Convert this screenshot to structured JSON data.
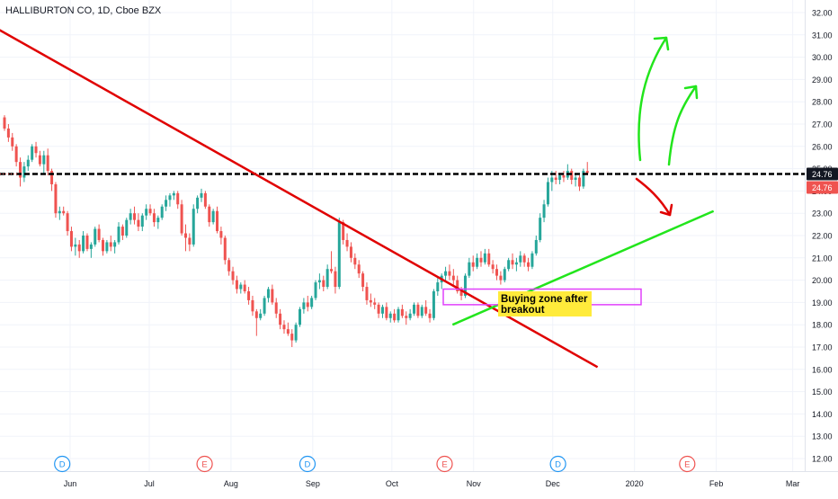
{
  "header": {
    "symbol": "HALLIBURTON CO",
    "interval": "1D",
    "exchange": "Cboe BZX"
  },
  "colors": {
    "up": "#26a69a",
    "down": "#ef5350",
    "trend_down": "#e00000",
    "trend_up": "#22e51c",
    "arrow_up": "#22e51c",
    "arrow_down": "#e00000",
    "level": "#000000",
    "zone_border": "#e040fb",
    "label_bg": "#ffeb3b",
    "price_tag": "#131722",
    "price_tag_red": "#ef5350",
    "dividend": "#2196f3",
    "earnings": "#ef5350"
  },
  "annotations": {
    "buying_zone_label": "Buying zone after breakout"
  },
  "chart_data": {
    "type": "candlestick",
    "title": "HALLIBURTON CO, 1D, Cboe BZX",
    "ylim": [
      11.4,
      32.6
    ],
    "y_ticks": [
      "32.00",
      "31.00",
      "30.00",
      "29.00",
      "28.00",
      "27.00",
      "26.00",
      "25.00",
      "24.00",
      "23.00",
      "22.00",
      "21.00",
      "20.00",
      "19.00",
      "18.00",
      "17.00",
      "16.00",
      "15.00",
      "14.00",
      "13.00",
      "12.00"
    ],
    "x_ticks": [
      "Jun",
      "Jul",
      "Aug",
      "Sep",
      "Oct",
      "Nov",
      "Dec",
      "2020",
      "Feb",
      "Mar"
    ],
    "last_price": "24.76",
    "last_price_2": "24.76",
    "event_markers": [
      {
        "letter": "D",
        "type": "dividend",
        "date": "May 29"
      },
      {
        "letter": "E",
        "type": "earnings",
        "date": "Jul 22"
      },
      {
        "letter": "D",
        "type": "dividend",
        "date": "Aug 30"
      },
      {
        "letter": "E",
        "type": "earnings",
        "date": "Oct 21"
      },
      {
        "letter": "D",
        "type": "dividend",
        "date": "Dec 3"
      },
      {
        "letter": "E",
        "type": "earnings",
        "date": "Jan 21"
      }
    ],
    "drawings": {
      "descending_trendline": {
        "from": {
          "date": "May 1",
          "price": 31.5
        },
        "to": {
          "date": "Dec 18",
          "price": 16.1
        }
      },
      "ascending_trendline": {
        "from": {
          "date": "Oct 24",
          "price": 18.0
        },
        "to": {
          "date": "Jan 31",
          "price": 23.1
        }
      },
      "horizontal_level": 24.76,
      "buying_zone": {
        "low": 18.9,
        "high": 19.6
      }
    },
    "candles": [
      [
        27.3,
        27.4,
        26.7,
        26.8
      ],
      [
        26.8,
        27.0,
        26.2,
        26.4
      ],
      [
        26.4,
        26.6,
        25.8,
        26.0
      ],
      [
        26.0,
        26.1,
        25.1,
        25.3
      ],
      [
        25.3,
        25.5,
        24.2,
        24.6
      ],
      [
        24.6,
        25.3,
        24.4,
        25.1
      ],
      [
        25.1,
        25.6,
        24.9,
        25.4
      ],
      [
        25.4,
        26.1,
        25.3,
        26.0
      ],
      [
        26.0,
        26.2,
        25.5,
        25.7
      ],
      [
        25.6,
        25.8,
        25.1,
        25.2
      ],
      [
        25.2,
        25.8,
        24.8,
        25.6
      ],
      [
        25.6,
        25.9,
        24.7,
        24.9
      ],
      [
        24.9,
        25.0,
        24.0,
        24.3
      ],
      [
        24.3,
        24.4,
        22.8,
        23.0
      ],
      [
        23.0,
        23.3,
        22.7,
        23.1
      ],
      [
        23.1,
        23.3,
        22.9,
        23.0
      ],
      [
        23.0,
        23.1,
        22.0,
        22.2
      ],
      [
        22.2,
        22.4,
        21.3,
        21.5
      ],
      [
        21.5,
        21.9,
        21.1,
        21.6
      ],
      [
        21.6,
        21.8,
        21.0,
        21.3
      ],
      [
        21.3,
        22.2,
        21.2,
        22.0
      ],
      [
        22.0,
        22.1,
        21.3,
        21.4
      ],
      [
        21.4,
        21.7,
        21.0,
        21.6
      ],
      [
        21.6,
        22.4,
        21.5,
        22.3
      ],
      [
        22.3,
        22.5,
        21.7,
        21.8
      ],
      [
        21.8,
        21.9,
        21.1,
        21.3
      ],
      [
        21.3,
        21.8,
        21.2,
        21.7
      ],
      [
        21.7,
        22.0,
        21.3,
        21.5
      ],
      [
        21.5,
        21.8,
        21.2,
        21.7
      ],
      [
        21.7,
        22.6,
        21.6,
        22.4
      ],
      [
        22.4,
        22.5,
        21.8,
        22.0
      ],
      [
        22.0,
        22.8,
        21.9,
        22.7
      ],
      [
        22.7,
        23.2,
        22.5,
        23.0
      ],
      [
        23.0,
        23.3,
        22.5,
        22.7
      ],
      [
        22.7,
        23.0,
        22.2,
        22.4
      ],
      [
        22.4,
        23.0,
        22.2,
        22.9
      ],
      [
        22.9,
        23.4,
        22.7,
        23.2
      ],
      [
        23.2,
        23.4,
        22.9,
        23.0
      ],
      [
        23.0,
        23.2,
        22.4,
        22.6
      ],
      [
        22.6,
        22.9,
        22.3,
        22.8
      ],
      [
        22.8,
        23.4,
        22.7,
        23.3
      ],
      [
        23.3,
        23.8,
        23.1,
        23.6
      ],
      [
        23.6,
        23.9,
        23.3,
        23.8
      ],
      [
        23.8,
        24.0,
        23.6,
        23.9
      ],
      [
        23.9,
        24.0,
        23.2,
        23.4
      ],
      [
        23.4,
        23.6,
        22.0,
        22.1
      ],
      [
        22.1,
        22.5,
        21.3,
        21.9
      ],
      [
        21.9,
        22.1,
        21.3,
        21.6
      ],
      [
        21.6,
        23.4,
        21.5,
        23.2
      ],
      [
        23.2,
        23.8,
        23.0,
        23.7
      ],
      [
        23.7,
        24.1,
        23.5,
        23.9
      ],
      [
        23.9,
        24.0,
        23.2,
        23.3
      ],
      [
        23.3,
        23.4,
        22.4,
        22.6
      ],
      [
        22.6,
        23.2,
        22.5,
        23.1
      ],
      [
        23.1,
        23.3,
        22.1,
        22.2
      ],
      [
        22.2,
        22.4,
        21.6,
        21.9
      ],
      [
        21.9,
        22.0,
        20.7,
        20.9
      ],
      [
        20.9,
        21.0,
        20.2,
        20.4
      ],
      [
        20.4,
        20.6,
        19.8,
        20.0
      ],
      [
        20.0,
        20.2,
        19.4,
        19.6
      ],
      [
        19.6,
        19.9,
        19.4,
        19.8
      ],
      [
        19.8,
        20.0,
        19.4,
        19.5
      ],
      [
        19.5,
        19.7,
        18.9,
        19.1
      ],
      [
        19.1,
        19.3,
        18.4,
        18.6
      ],
      [
        18.6,
        18.7,
        17.5,
        18.3
      ],
      [
        18.3,
        18.7,
        18.2,
        18.5
      ],
      [
        18.5,
        19.3,
        18.4,
        19.2
      ],
      [
        19.2,
        19.7,
        19.0,
        19.6
      ],
      [
        19.6,
        19.8,
        18.9,
        19.0
      ],
      [
        19.0,
        19.2,
        18.3,
        18.5
      ],
      [
        18.5,
        18.7,
        17.8,
        18.0
      ],
      [
        18.0,
        18.2,
        17.6,
        17.8
      ],
      [
        17.8,
        18.1,
        17.5,
        17.6
      ],
      [
        17.6,
        17.8,
        17.0,
        17.3
      ],
      [
        17.3,
        18.1,
        17.2,
        18.0
      ],
      [
        18.0,
        18.8,
        17.9,
        18.7
      ],
      [
        18.7,
        19.2,
        18.5,
        19.0
      ],
      [
        19.0,
        19.3,
        18.6,
        18.8
      ],
      [
        18.8,
        19.3,
        18.7,
        19.2
      ],
      [
        19.2,
        20.0,
        19.1,
        19.9
      ],
      [
        19.9,
        20.3,
        19.6,
        20.0
      ],
      [
        20.0,
        20.2,
        19.5,
        19.7
      ],
      [
        19.7,
        20.7,
        19.6,
        20.5
      ],
      [
        20.5,
        21.3,
        20.3,
        20.4
      ],
      [
        20.4,
        20.6,
        19.4,
        19.7
      ],
      [
        19.7,
        22.8,
        19.6,
        22.6
      ],
      [
        22.6,
        22.7,
        21.6,
        21.8
      ],
      [
        21.8,
        22.1,
        21.3,
        21.5
      ],
      [
        21.5,
        21.7,
        20.8,
        21.0
      ],
      [
        21.0,
        21.2,
        20.5,
        20.7
      ],
      [
        20.7,
        20.9,
        20.1,
        20.3
      ],
      [
        20.3,
        20.4,
        19.5,
        19.7
      ],
      [
        19.7,
        19.9,
        18.9,
        19.1
      ],
      [
        19.1,
        19.4,
        18.8,
        19.0
      ],
      [
        19.0,
        19.2,
        18.7,
        18.9
      ],
      [
        18.9,
        19.0,
        18.3,
        18.5
      ],
      [
        18.5,
        18.9,
        18.3,
        18.8
      ],
      [
        18.8,
        19.0,
        18.2,
        18.3
      ],
      [
        18.3,
        18.6,
        18.1,
        18.5
      ],
      [
        18.5,
        18.7,
        18.1,
        18.2
      ],
      [
        18.2,
        18.8,
        18.1,
        18.7
      ],
      [
        18.7,
        18.9,
        18.3,
        18.4
      ],
      [
        18.4,
        18.6,
        18.0,
        18.3
      ],
      [
        18.3,
        18.7,
        18.2,
        18.5
      ],
      [
        18.5,
        19.0,
        18.4,
        18.9
      ],
      [
        18.9,
        19.0,
        18.3,
        18.4
      ],
      [
        18.4,
        18.9,
        18.3,
        18.8
      ],
      [
        18.8,
        19.1,
        18.4,
        18.5
      ],
      [
        18.5,
        18.7,
        18.1,
        18.3
      ],
      [
        18.3,
        19.6,
        18.2,
        19.5
      ],
      [
        19.5,
        20.1,
        19.3,
        19.9
      ],
      [
        19.9,
        20.3,
        19.6,
        20.2
      ],
      [
        20.2,
        20.6,
        19.9,
        20.4
      ],
      [
        20.4,
        20.7,
        20.0,
        20.2
      ],
      [
        20.2,
        20.5,
        19.8,
        20.0
      ],
      [
        20.0,
        20.2,
        19.4,
        19.5
      ],
      [
        19.5,
        19.7,
        19.1,
        19.3
      ],
      [
        19.3,
        20.3,
        19.2,
        20.2
      ],
      [
        20.2,
        21.0,
        20.1,
        20.8
      ],
      [
        20.8,
        21.1,
        20.4,
        20.6
      ],
      [
        20.6,
        21.2,
        20.5,
        21.0
      ],
      [
        21.0,
        21.3,
        20.6,
        20.8
      ],
      [
        20.8,
        21.4,
        20.7,
        21.2
      ],
      [
        21.2,
        21.4,
        20.6,
        20.7
      ],
      [
        20.7,
        20.9,
        20.3,
        20.5
      ],
      [
        20.5,
        20.7,
        20.0,
        20.2
      ],
      [
        20.2,
        20.4,
        19.8,
        20.0
      ],
      [
        20.0,
        20.6,
        19.9,
        20.5
      ],
      [
        20.5,
        21.0,
        20.4,
        20.9
      ],
      [
        20.9,
        21.2,
        20.5,
        20.7
      ],
      [
        20.7,
        21.0,
        20.4,
        20.8
      ],
      [
        20.8,
        21.3,
        20.6,
        21.1
      ],
      [
        21.1,
        21.2,
        20.6,
        20.8
      ],
      [
        20.8,
        21.0,
        20.4,
        20.6
      ],
      [
        20.6,
        21.3,
        20.5,
        21.2
      ],
      [
        21.2,
        22.0,
        21.1,
        21.8
      ],
      [
        21.8,
        23.0,
        21.7,
        22.8
      ],
      [
        22.8,
        23.6,
        22.6,
        23.4
      ],
      [
        23.4,
        24.6,
        23.3,
        24.4
      ],
      [
        24.4,
        24.9,
        24.0,
        24.6
      ],
      [
        24.6,
        24.9,
        24.3,
        24.5
      ],
      [
        24.5,
        24.8,
        24.3,
        24.7
      ],
      [
        24.7,
        24.9,
        24.4,
        24.6
      ],
      [
        24.6,
        25.2,
        24.5,
        24.9
      ],
      [
        24.9,
        25.0,
        24.3,
        24.5
      ],
      [
        24.5,
        24.8,
        24.2,
        24.6
      ],
      [
        24.6,
        24.7,
        24.0,
        24.2
      ],
      [
        24.2,
        25.0,
        24.1,
        24.9
      ],
      [
        24.9,
        25.3,
        24.7,
        24.8
      ]
    ]
  }
}
